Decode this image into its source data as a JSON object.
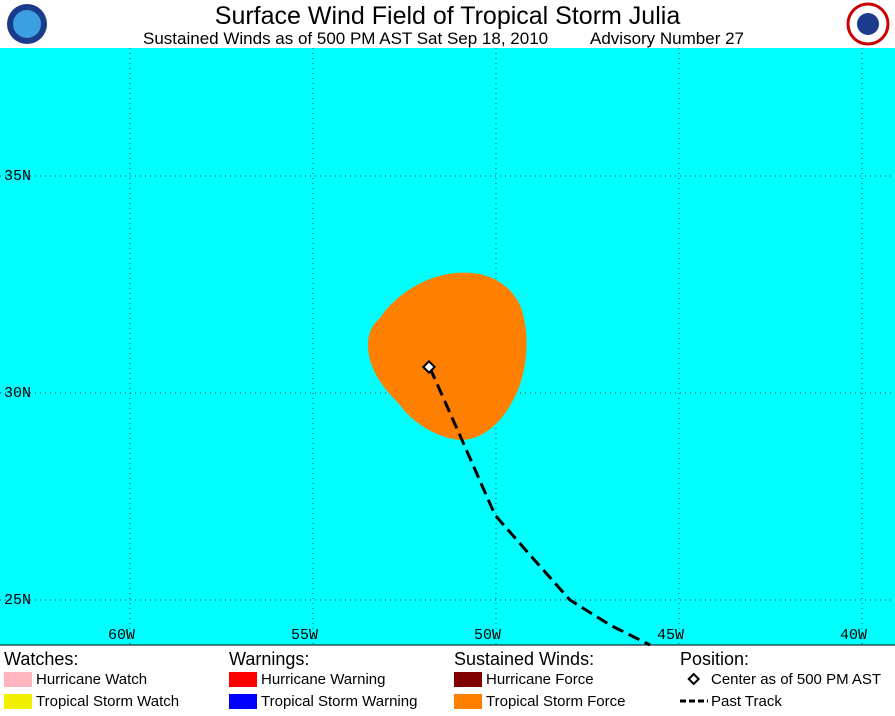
{
  "header": {
    "title": "Surface Wind Field of Tropical Storm Julia",
    "subtitle": "Sustained Winds as of 500 PM AST Sat Sep 18, 2010",
    "advisory": "Advisory Number 27"
  },
  "map": {
    "lon_labels": [
      "60W",
      "55W",
      "50W",
      "45W",
      "40W"
    ],
    "lat_labels": [
      "35N",
      "30N",
      "25N"
    ]
  },
  "legend": [
    {
      "heading": "Watches:",
      "items": [
        "Hurricane Watch",
        "Tropical Storm Watch"
      ]
    },
    {
      "heading": "Warnings:",
      "items": [
        "Hurricane Warning",
        "Tropical Storm Warning"
      ]
    },
    {
      "heading": "Sustained Winds:",
      "items": [
        "Hurricane Force",
        "Tropical Storm Force"
      ]
    },
    {
      "heading": "Position:",
      "items": [
        "Center as of 500 PM AST",
        "Past Track"
      ]
    }
  ]
}
